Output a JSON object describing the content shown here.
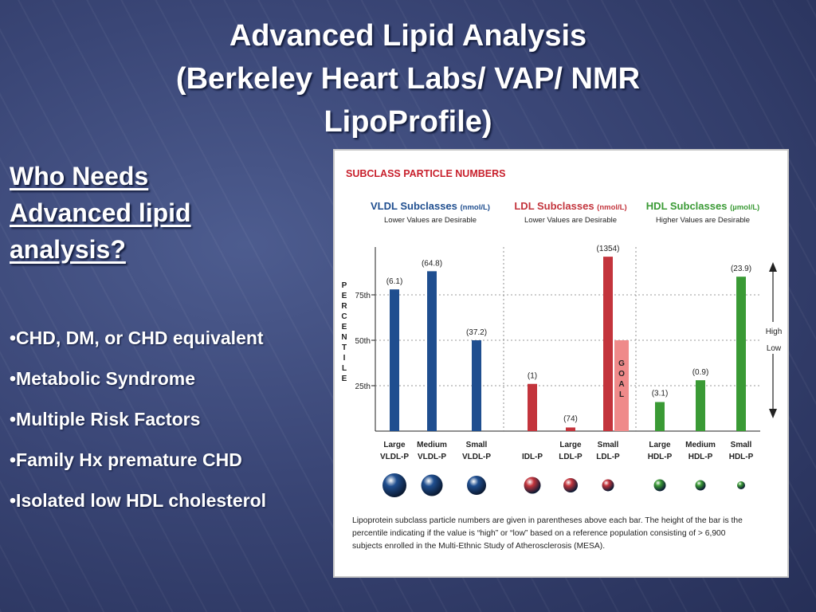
{
  "title": {
    "line1": "Advanced Lipid Analysis",
    "line2": "(Berkeley Heart Labs/ VAP/ NMR",
    "line3": "LipoProfile)"
  },
  "left": {
    "heading_line1": "Who Needs",
    "heading_line2": "Advanced lipid",
    "heading_line3": "analysis?",
    "bullets": [
      "•CHD, DM, or CHD equivalent",
      "•Metabolic Syndrome",
      "•Multiple Risk Factors",
      "•Family Hx premature CHD",
      "•Isolated low HDL cholesterol"
    ]
  },
  "colors": {
    "vldl": "#1f4e8f",
    "ldl": "#c3343c",
    "goal": "#ef8a8a",
    "hdl": "#3a9a35",
    "header_red": "#c8202c"
  },
  "chart_data": {
    "type": "bar",
    "title": "SUBCLASS PARTICLE NUMBERS",
    "ylabel": "PERCENTILE",
    "ylim": [
      0,
      100
    ],
    "yticks": [
      "25th",
      "50th",
      "75th"
    ],
    "groups": [
      {
        "name": "VLDL Subclasses",
        "unit": "(nmol/L)",
        "note": "Lower Values are Desirable",
        "color": "#1f4e8f"
      },
      {
        "name": "LDL Subclasses",
        "unit": "(nmol/L)",
        "note": "Lower Values are Desirable",
        "color": "#c3343c"
      },
      {
        "name": "HDL Subclasses",
        "unit": "(µmol/L)",
        "note": "Higher Values are Desirable",
        "color": "#3a9a35"
      }
    ],
    "bars": [
      {
        "group": 0,
        "label1": "Large",
        "label2": "VLDL-P",
        "value": 78,
        "particle": "(6.1)"
      },
      {
        "group": 0,
        "label1": "Medium",
        "label2": "VLDL-P",
        "value": 88,
        "particle": "(64.8)"
      },
      {
        "group": 0,
        "label1": "Small",
        "label2": "VLDL-P",
        "value": 50,
        "particle": "(37.2)"
      },
      {
        "group": 1,
        "label1": "",
        "label2": "IDL-P",
        "value": 26,
        "particle": "(1)"
      },
      {
        "group": 1,
        "label1": "Large",
        "label2": "LDL-P",
        "value": 2,
        "particle": "(74)"
      },
      {
        "group": 1,
        "label1": "Small",
        "label2": "LDL-P",
        "value": 96,
        "particle": "(1354)",
        "goal": 50,
        "goal_label": "GOAL"
      },
      {
        "group": 2,
        "label1": "Large",
        "label2": "HDL-P",
        "value": 16,
        "particle": "(3.1)"
      },
      {
        "group": 2,
        "label1": "Medium",
        "label2": "HDL-P",
        "value": 28,
        "particle": "(0.9)"
      },
      {
        "group": 2,
        "label1": "Small",
        "label2": "HDL-P",
        "value": 85,
        "particle": "(23.9)"
      }
    ],
    "arrow_labels": [
      "High",
      "Low"
    ],
    "footnote": [
      "Lipoprotein subclass particle numbers are given in parentheses above each bar. The height of the bar is the",
      "percentile indicating if the value is “high” or “low” based on a reference population consisting of > 6,900",
      "subjects enrolled in the Multi-Ethnic Study of Atherosclerosis (MESA)."
    ]
  }
}
